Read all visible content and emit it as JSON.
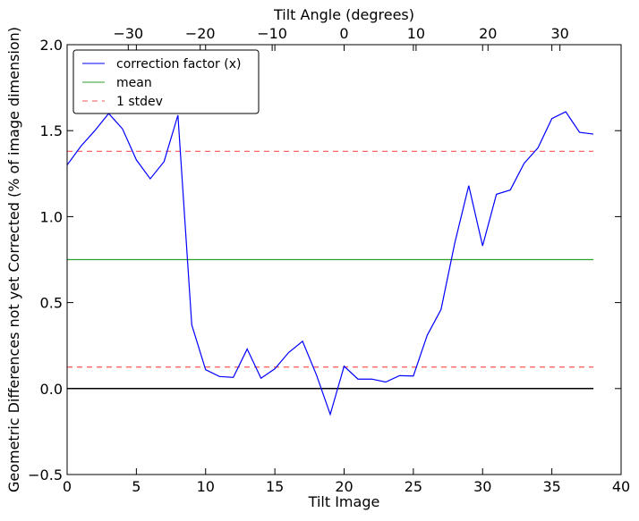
{
  "chart_data": {
    "type": "line",
    "xlabel": "Tilt Image",
    "ylabel": "Geometric Differences not yet Corrected (% of image dimension)",
    "x2label": "Tilt Angle (degrees)",
    "xlim": [
      0,
      40
    ],
    "ylim": [
      -0.5,
      2.0
    ],
    "x2lim": [
      -38.5,
      38.5
    ],
    "xticks": [
      0,
      5,
      10,
      15,
      20,
      25,
      30,
      35,
      40
    ],
    "xtick_labels": [
      "0",
      "5",
      "10",
      "15",
      "20",
      "25",
      "30",
      "35",
      "40"
    ],
    "yticks": [
      -0.5,
      0.0,
      0.5,
      1.0,
      1.5,
      2.0
    ],
    "ytick_labels": [
      "−0.5",
      "0.0",
      "0.5",
      "1.0",
      "1.5",
      "2.0"
    ],
    "x2ticks": [
      -30,
      -20,
      -10,
      0,
      10,
      20,
      30
    ],
    "x2tick_labels": [
      "−30",
      "−20",
      "−10",
      "0",
      "10",
      "20",
      "30"
    ],
    "grid": false,
    "legend_position": "top-left",
    "series": [
      {
        "name": "correction factor (x)",
        "color": "#0000ff",
        "style": "solid",
        "x": [
          0,
          1,
          2,
          3,
          4,
          5,
          6,
          7,
          8,
          9,
          10,
          11,
          12,
          13,
          14,
          15,
          16,
          17,
          18,
          19,
          20,
          21,
          22,
          23,
          24,
          25,
          26,
          27,
          28,
          29,
          30,
          31,
          32,
          33,
          34,
          35,
          36,
          37,
          38
        ],
        "y": [
          1.3,
          1.41,
          1.5,
          1.6,
          1.51,
          1.33,
          1.22,
          1.32,
          1.59,
          0.37,
          0.11,
          0.07,
          0.065,
          0.23,
          0.06,
          0.115,
          0.21,
          0.275,
          0.08,
          -0.15,
          0.13,
          0.055,
          0.055,
          0.038,
          0.075,
          0.073,
          0.31,
          0.46,
          0.85,
          1.18,
          0.83,
          1.13,
          1.155,
          1.31,
          1.4,
          1.57,
          1.61,
          1.49,
          1.48
        ]
      },
      {
        "name": "mean",
        "color": "#2ca02c",
        "style": "solid",
        "x": [
          0,
          38
        ],
        "y": [
          0.75,
          0.75
        ]
      },
      {
        "name": "1 stdev",
        "color": "#ff5555",
        "style": "dashed",
        "x": [
          0,
          38
        ],
        "y": [
          1.38,
          1.38
        ]
      },
      {
        "color": "#ff5555",
        "style": "dashed",
        "x": [
          0,
          38
        ],
        "y": [
          0.125,
          0.125
        ]
      },
      {
        "color": "#000000",
        "style": "solid",
        "x": [
          0,
          38
        ],
        "y": [
          0.0,
          0.0
        ]
      }
    ]
  }
}
